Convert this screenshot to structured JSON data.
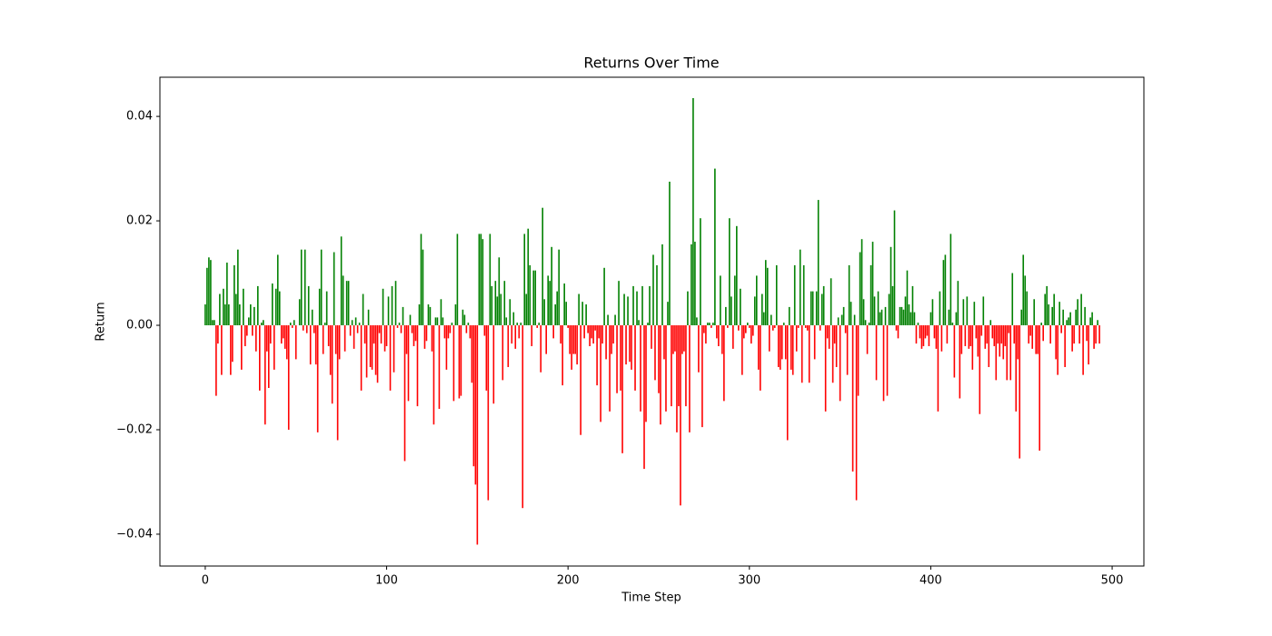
{
  "chart_data": {
    "type": "bar",
    "title": "Returns Over Time",
    "xlabel": "Time Step",
    "ylabel": "Return",
    "color_positive": "green",
    "color_negative": "red",
    "xlim": [
      -25,
      517.5
    ],
    "ylim": [
      -0.0461,
      0.0475
    ],
    "xticks": [
      0,
      100,
      200,
      300,
      400,
      500
    ],
    "yticks": [
      {
        "value": -0.04,
        "label": "−0.04"
      },
      {
        "value": -0.02,
        "label": "−0.02"
      },
      {
        "value": 0,
        "label": "0.00"
      },
      0.02,
      0.04
    ],
    "x": [
      0,
      1,
      2,
      3,
      4,
      5,
      6,
      7,
      8,
      9,
      10,
      11,
      12,
      13,
      14,
      15,
      16,
      17,
      18,
      19,
      20,
      21,
      22,
      23,
      24,
      25,
      26,
      27,
      28,
      29,
      30,
      31,
      32,
      33,
      34,
      35,
      36,
      37,
      38,
      39,
      40,
      41,
      42,
      43,
      44,
      45,
      46,
      47,
      48,
      49,
      50,
      51,
      52,
      53,
      54,
      55,
      56,
      57,
      58,
      59,
      60,
      61,
      62,
      63,
      64,
      65,
      66,
      67,
      68,
      69,
      70,
      71,
      72,
      73,
      74,
      75,
      76,
      77,
      78,
      79,
      80,
      81,
      82,
      83,
      84,
      85,
      86,
      87,
      88,
      89,
      90,
      91,
      92,
      93,
      94,
      95,
      96,
      97,
      98,
      99,
      100,
      101,
      102,
      103,
      104,
      105,
      106,
      107,
      108,
      109,
      110,
      111,
      112,
      113,
      114,
      115,
      116,
      117,
      118,
      119,
      120,
      121,
      122,
      123,
      124,
      125,
      126,
      127,
      128,
      129,
      130,
      131,
      132,
      133,
      134,
      135,
      136,
      137,
      138,
      139,
      140,
      141,
      142,
      143,
      144,
      145,
      146,
      147,
      148,
      149,
      150,
      151,
      152,
      153,
      154,
      155,
      156,
      157,
      158,
      159,
      160,
      161,
      162,
      163,
      164,
      165,
      166,
      167,
      168,
      169,
      170,
      171,
      172,
      173,
      174,
      175,
      176,
      177,
      178,
      179,
      180,
      181,
      182,
      183,
      184,
      185,
      186,
      187,
      188,
      189,
      190,
      191,
      192,
      193,
      194,
      195,
      196,
      197,
      198,
      199,
      200,
      201,
      202,
      203,
      204,
      205,
      206,
      207,
      208,
      209,
      210,
      211,
      212,
      213,
      214,
      215,
      216,
      217,
      218,
      219,
      220,
      221,
      222,
      223,
      224,
      225,
      226,
      227,
      228,
      229,
      230,
      231,
      232,
      233,
      234,
      235,
      236,
      237,
      238,
      239,
      240,
      241,
      242,
      243,
      244,
      245,
      246,
      247,
      248,
      249,
      250,
      251,
      252,
      253,
      254,
      255,
      256,
      257,
      258,
      259,
      260,
      261,
      262,
      263,
      264,
      265,
      266,
      267,
      268,
      269,
      270,
      271,
      272,
      273,
      274,
      275,
      276,
      277,
      278,
      279,
      280,
      281,
      282,
      283,
      284,
      285,
      286,
      287,
      288,
      289,
      290,
      291,
      292,
      293,
      294,
      295,
      296,
      297,
      298,
      299,
      300,
      301,
      302,
      303,
      304,
      305,
      306,
      307,
      308,
      309,
      310,
      311,
      312,
      313,
      314,
      315,
      316,
      317,
      318,
      319,
      320,
      321,
      322,
      323,
      324,
      325,
      326,
      327,
      328,
      329,
      330,
      331,
      332,
      333,
      334,
      335,
      336,
      337,
      338,
      339,
      340,
      341,
      342,
      343,
      344,
      345,
      346,
      347,
      348,
      349,
      350,
      351,
      352,
      353,
      354,
      355,
      356,
      357,
      358,
      359,
      360,
      361,
      362,
      363,
      364,
      365,
      366,
      367,
      368,
      369,
      370,
      371,
      372,
      373,
      374,
      375,
      376,
      377,
      378,
      379,
      380,
      381,
      382,
      383,
      384,
      385,
      386,
      387,
      388,
      389,
      390,
      391,
      392,
      393,
      394,
      395,
      396,
      397,
      398,
      399,
      400,
      401,
      402,
      403,
      404,
      405,
      406,
      407,
      408,
      409,
      410,
      411,
      412,
      413,
      414,
      415,
      416,
      417,
      418,
      419,
      420,
      421,
      422,
      423,
      424,
      425,
      426,
      427,
      428,
      429,
      430,
      431,
      432,
      433,
      434,
      435,
      436,
      437,
      438,
      439,
      440,
      441,
      442,
      443,
      444,
      445,
      446,
      447,
      448,
      449,
      450,
      451,
      452,
      453,
      454,
      455,
      456,
      457,
      458,
      459,
      460,
      461,
      462,
      463,
      464,
      465,
      466,
      467,
      468,
      469,
      470,
      471,
      472,
      473,
      474,
      475,
      476,
      477,
      478,
      479,
      480,
      481,
      482,
      483,
      484,
      485,
      486,
      487,
      488,
      489,
      490,
      491,
      492,
      493
    ],
    "values": [
      0.004,
      0.011,
      0.013,
      0.0125,
      0.001,
      0.001,
      -0.0135,
      -0.0035,
      0.006,
      -0.0095,
      0.007,
      0.004,
      0.012,
      0.004,
      -0.0095,
      -0.007,
      0.0115,
      0.006,
      0.0145,
      0.004,
      -0.0085,
      0.007,
      -0.004,
      -0.002,
      0.0015,
      0.004,
      -0.002,
      0.0035,
      -0.005,
      0.0075,
      -0.0125,
      0.0005,
      0.001,
      -0.019,
      -0.005,
      -0.012,
      -0.0035,
      0.008,
      -0.0085,
      0.007,
      0.0135,
      0.0065,
      -0.0035,
      -0.0025,
      -0.0045,
      -0.0065,
      -0.02,
      0.0005,
      -0.0005,
      0.001,
      -0.0065,
      0.0,
      0.005,
      0.0145,
      -0.001,
      0.0145,
      -0.0015,
      0.0075,
      -0.0075,
      0.003,
      -0.0015,
      -0.0075,
      -0.0205,
      0.007,
      0.0145,
      -0.0055,
      0.0005,
      0.0065,
      -0.004,
      -0.0095,
      -0.015,
      0.014,
      -0.0055,
      -0.022,
      -0.0065,
      0.017,
      0.0095,
      -0.005,
      0.0085,
      0.0085,
      -0.002,
      0.001,
      -0.0045,
      0.0015,
      -0.0015,
      0.0005,
      -0.0125,
      0.006,
      -0.0035,
      -0.01,
      0.003,
      -0.008,
      -0.0085,
      -0.0035,
      -0.0095,
      -0.011,
      -0.0015,
      -0.0035,
      0.007,
      -0.005,
      -0.004,
      0.0055,
      -0.0125,
      0.0075,
      -0.009,
      0.0085,
      -0.0005,
      0.0005,
      -0.0015,
      0.0035,
      -0.026,
      -0.0055,
      -0.0145,
      0.002,
      -0.0015,
      -0.004,
      -0.003,
      -0.0155,
      0.004,
      0.0175,
      0.0145,
      -0.0045,
      -0.003,
      0.004,
      0.0035,
      -0.005,
      -0.019,
      0.0015,
      0.0015,
      -0.016,
      0.005,
      0.0015,
      -0.0025,
      -0.0085,
      -0.0025,
      -0.0015,
      0.0005,
      -0.0145,
      0.004,
      0.0175,
      -0.014,
      -0.0135,
      0.003,
      0.002,
      -0.0015,
      0.0005,
      -0.0025,
      -0.011,
      -0.027,
      -0.0305,
      -0.042,
      0.0175,
      0.0175,
      0.0165,
      -0.002,
      -0.0125,
      -0.0335,
      0.0175,
      0.0075,
      -0.015,
      0.0085,
      0.0055,
      0.013,
      0.006,
      -0.0105,
      0.0085,
      0.0015,
      -0.008,
      0.005,
      -0.0035,
      0.0025,
      -0.0045,
      0.0005,
      -0.0025,
      0.0005,
      -0.035,
      0.0175,
      0.006,
      0.0185,
      0.0115,
      -0.004,
      0.0105,
      0.0105,
      -0.0005,
      0.0005,
      -0.009,
      0.0225,
      0.005,
      -0.0055,
      0.0095,
      0.0085,
      0.015,
      -0.0025,
      0.004,
      0.0065,
      0.0145,
      -0.0035,
      -0.0115,
      0.008,
      0.0045,
      -0.0005,
      -0.0055,
      -0.0085,
      -0.0055,
      -0.0055,
      -0.0075,
      0.006,
      -0.021,
      0.0045,
      -0.0025,
      0.004,
      -0.0015,
      -0.004,
      -0.0025,
      -0.0035,
      -0.001,
      -0.0115,
      -0.0025,
      -0.0185,
      -0.0035,
      0.011,
      -0.0065,
      0.002,
      -0.0165,
      -0.0055,
      -0.0035,
      0.002,
      -0.013,
      0.0085,
      -0.0125,
      -0.0245,
      0.006,
      -0.0075,
      0.0055,
      -0.007,
      -0.0085,
      0.0075,
      -0.0125,
      0.0065,
      0.001,
      -0.0165,
      0.0075,
      -0.0275,
      -0.0185,
      0.0005,
      0.0075,
      -0.0045,
      0.0135,
      -0.0105,
      0.0115,
      -0.013,
      -0.019,
      0.0155,
      -0.0065,
      -0.0165,
      0.0045,
      0.0275,
      -0.0155,
      -0.0055,
      -0.005,
      -0.0205,
      -0.0155,
      -0.0345,
      -0.0055,
      -0.005,
      -0.0155,
      0.0065,
      -0.0205,
      0.0155,
      0.0435,
      0.016,
      0.0015,
      -0.009,
      0.0205,
      -0.0195,
      -0.0015,
      -0.0035,
      0.0005,
      0.0005,
      -0.0005,
      0.0005,
      0.03,
      -0.0025,
      -0.004,
      0.0095,
      -0.0055,
      -0.0145,
      0.0035,
      -0.0005,
      0.0205,
      0.0055,
      -0.0045,
      0.0095,
      0.019,
      -0.001,
      0.007,
      -0.0095,
      -0.0025,
      -0.0015,
      0.0005,
      -0.0005,
      -0.0035,
      -0.002,
      0.0055,
      0.0095,
      -0.0085,
      -0.0125,
      0.006,
      0.0025,
      0.0125,
      0.011,
      -0.005,
      0.002,
      -0.001,
      -0.0005,
      0.0115,
      -0.008,
      -0.0085,
      -0.0065,
      0.0005,
      -0.0065,
      -0.022,
      0.0035,
      -0.0085,
      -0.0095,
      0.0115,
      -0.005,
      -0.0005,
      0.0145,
      -0.011,
      0.0115,
      -0.0005,
      -0.001,
      -0.011,
      0.0065,
      0.0065,
      -0.0065,
      0.0065,
      0.024,
      -0.001,
      0.006,
      0.0075,
      -0.0165,
      -0.0025,
      -0.0045,
      0.009,
      -0.011,
      -0.0035,
      -0.008,
      0.0015,
      -0.0145,
      0.002,
      0.0035,
      -0.0015,
      -0.0095,
      0.0115,
      0.0045,
      -0.028,
      0.002,
      -0.0335,
      -0.0135,
      0.014,
      0.0165,
      0.005,
      0.001,
      -0.0055,
      0.0005,
      0.0115,
      0.016,
      0.0055,
      -0.0105,
      0.0065,
      0.0025,
      0.003,
      -0.0145,
      0.0035,
      -0.0135,
      0.006,
      0.015,
      0.0075,
      0.022,
      -0.001,
      -0.0025,
      0.0035,
      0.0035,
      0.003,
      0.0055,
      0.0105,
      0.004,
      0.0025,
      0.0075,
      0.0025,
      -0.0035,
      0.0005,
      -0.0025,
      -0.0045,
      -0.004,
      -0.0025,
      -0.002,
      -0.004,
      0.0025,
      0.005,
      -0.0025,
      -0.0045,
      -0.0165,
      0.0065,
      -0.005,
      0.0125,
      0.0135,
      -0.0035,
      0.003,
      0.0175,
      0.0005,
      -0.01,
      0.0025,
      0.0085,
      -0.014,
      -0.0055,
      0.005,
      -0.004,
      0.0055,
      -0.0045,
      -0.004,
      -0.0085,
      0.0045,
      -0.0025,
      -0.006,
      -0.017,
      -0.002,
      0.0055,
      -0.0045,
      -0.0035,
      -0.008,
      0.001,
      -0.0025,
      -0.004,
      -0.0105,
      -0.0035,
      -0.006,
      -0.0035,
      -0.0065,
      -0.004,
      -0.0105,
      -0.0015,
      -0.0105,
      0.01,
      -0.0035,
      -0.0165,
      -0.0065,
      -0.0255,
      0.003,
      0.0135,
      0.0095,
      0.0065,
      -0.0035,
      -0.002,
      -0.0045,
      0.005,
      -0.0055,
      -0.0055,
      -0.024,
      0.0005,
      -0.003,
      0.006,
      0.0075,
      0.004,
      -0.0035,
      0.0035,
      0.006,
      -0.0065,
      -0.0095,
      0.0045,
      -0.0015,
      0.003,
      -0.008,
      0.001,
      0.0015,
      0.0025,
      -0.005,
      -0.0035,
      0.003,
      0.005,
      -0.0035,
      0.006,
      -0.0095,
      0.0035,
      -0.003,
      -0.0075,
      0.0015,
      0.0025,
      -0.0045,
      -0.0035,
      0.001,
      -0.0035
    ]
  }
}
